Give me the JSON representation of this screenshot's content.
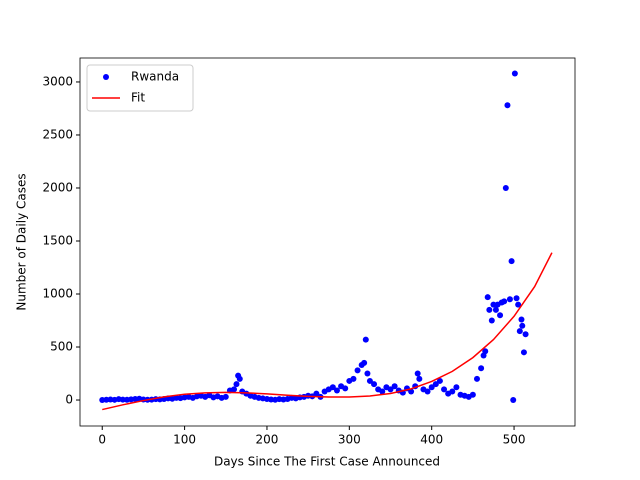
{
  "chart_data": {
    "type": "scatter",
    "xlabel": "Days Since The First Case Announced",
    "ylabel": "Number of Daily Cases",
    "xlim": [
      -27,
      574
    ],
    "ylim": [
      -245,
      3226
    ],
    "xticks": [
      0,
      100,
      200,
      300,
      400,
      500
    ],
    "yticks": [
      0,
      500,
      1000,
      1500,
      2000,
      2500,
      3000
    ],
    "legend": "upper left",
    "series": [
      {
        "name": "Rwanda",
        "color": "#0000ff",
        "style": "dots",
        "x": [
          0,
          5,
          10,
          15,
          20,
          25,
          30,
          35,
          40,
          45,
          50,
          55,
          60,
          65,
          70,
          75,
          80,
          85,
          90,
          95,
          100,
          105,
          110,
          115,
          120,
          125,
          130,
          135,
          140,
          145,
          150,
          155,
          160,
          163,
          165,
          167,
          170,
          175,
          180,
          185,
          190,
          195,
          200,
          205,
          210,
          215,
          220,
          225,
          230,
          235,
          240,
          245,
          250,
          255,
          260,
          265,
          270,
          275,
          280,
          285,
          290,
          295,
          300,
          305,
          310,
          315,
          318,
          320,
          322,
          325,
          330,
          335,
          340,
          345,
          350,
          355,
          360,
          365,
          370,
          375,
          380,
          383,
          385,
          390,
          395,
          400,
          405,
          410,
          415,
          420,
          425,
          430,
          435,
          440,
          445,
          450,
          455,
          460,
          463,
          465,
          468,
          470,
          473,
          475,
          478,
          480,
          483,
          485,
          488,
          490,
          492,
          495,
          497,
          499,
          501,
          503,
          505,
          507,
          509,
          510,
          512,
          514
        ],
        "values": [
          0,
          3,
          5,
          2,
          8,
          4,
          3,
          6,
          10,
          12,
          5,
          3,
          4,
          8,
          6,
          10,
          15,
          12,
          20,
          18,
          25,
          30,
          20,
          35,
          40,
          30,
          45,
          25,
          35,
          20,
          30,
          90,
          100,
          150,
          230,
          200,
          80,
          60,
          40,
          30,
          20,
          15,
          10,
          5,
          3,
          8,
          5,
          10,
          20,
          15,
          25,
          30,
          40,
          35,
          60,
          30,
          80,
          100,
          120,
          90,
          130,
          110,
          180,
          200,
          280,
          330,
          350,
          570,
          250,
          180,
          150,
          100,
          80,
          120,
          100,
          130,
          90,
          70,
          110,
          80,
          130,
          250,
          200,
          100,
          80,
          120,
          150,
          180,
          100,
          60,
          80,
          120,
          50,
          40,
          30,
          50,
          200,
          300,
          420,
          460,
          970,
          850,
          750,
          900,
          850,
          900,
          800,
          920,
          930,
          2000,
          2780,
          950,
          1310,
          0,
          3080,
          960,
          900,
          650,
          760,
          700,
          450,
          620
        ]
      },
      {
        "name": "Fit",
        "color": "#ff0000",
        "style": "line",
        "x": [
          0,
          25,
          50,
          75,
          100,
          125,
          150,
          175,
          200,
          225,
          250,
          275,
          300,
          325,
          350,
          375,
          400,
          425,
          450,
          475,
          500,
          525,
          546
        ],
        "values": [
          -90,
          -45,
          -5,
          30,
          55,
          68,
          72,
          68,
          58,
          45,
          35,
          28,
          28,
          38,
          62,
          105,
          175,
          270,
          400,
          570,
          790,
          1070,
          1390
        ]
      }
    ]
  }
}
